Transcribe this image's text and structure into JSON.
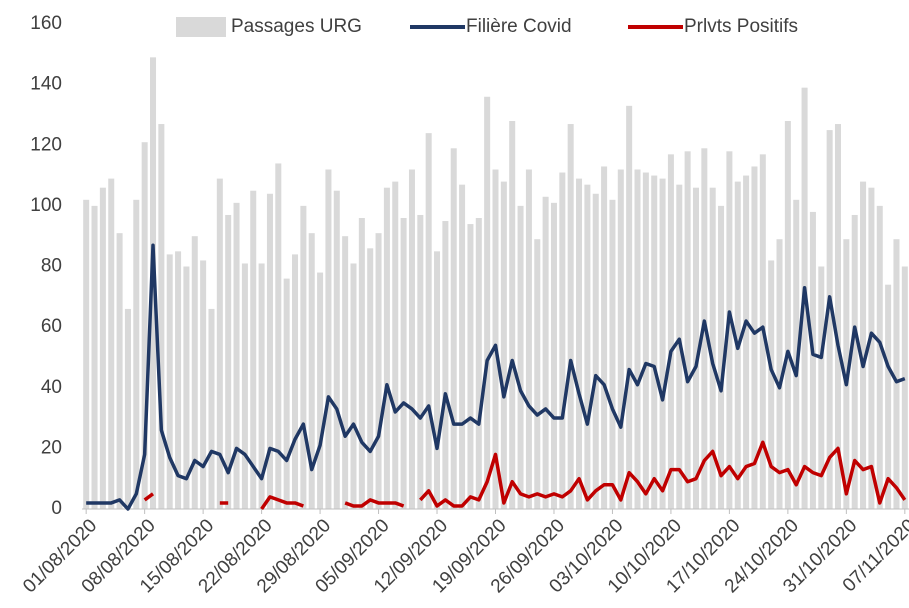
{
  "chart_data": {
    "type": "bar",
    "legend": "top",
    "grid": false,
    "ylim": [
      0,
      160
    ],
    "yticks": [
      0,
      20,
      40,
      60,
      80,
      100,
      120,
      140,
      160
    ],
    "categories": [
      "01/08/2020",
      null,
      null,
      null,
      null,
      null,
      null,
      "08/08/2020",
      null,
      null,
      null,
      null,
      null,
      null,
      "15/08/2020",
      null,
      null,
      null,
      null,
      null,
      null,
      "22/08/2020",
      null,
      null,
      null,
      null,
      null,
      null,
      "29/08/2020",
      null,
      null,
      null,
      null,
      null,
      null,
      "05/09/2020",
      null,
      null,
      null,
      null,
      null,
      null,
      "12/09/2020",
      null,
      null,
      null,
      null,
      null,
      null,
      "19/09/2020",
      null,
      null,
      null,
      null,
      null,
      null,
      "26/09/2020",
      null,
      null,
      null,
      null,
      null,
      null,
      "03/10/2020",
      null,
      null,
      null,
      null,
      null,
      null,
      "10/10/2020",
      null,
      null,
      null,
      null,
      null,
      null,
      "17/10/2020",
      null,
      null,
      null,
      null,
      null,
      null,
      "24/10/2020",
      null,
      null,
      null,
      null,
      null,
      null,
      "31/10/2020",
      null,
      null,
      null,
      null,
      null,
      null,
      "07/11/2020"
    ],
    "series": [
      {
        "name": "Passages URG",
        "type": "bar",
        "color": "#d9d9d9",
        "values": [
          102,
          100,
          106,
          109,
          91,
          66,
          102,
          121,
          149,
          127,
          84,
          85,
          80,
          90,
          82,
          66,
          109,
          97,
          101,
          81,
          105,
          81,
          104,
          114,
          76,
          84,
          100,
          91,
          78,
          112,
          105,
          90,
          81,
          96,
          86,
          91,
          106,
          108,
          96,
          112,
          97,
          124,
          85,
          95,
          119,
          107,
          94,
          96,
          136,
          112,
          108,
          128,
          100,
          112,
          89,
          103,
          101,
          111,
          127,
          109,
          107,
          104,
          113,
          102,
          112,
          133,
          112,
          111,
          110,
          109,
          117,
          107,
          118,
          106,
          119,
          106,
          100,
          118,
          108,
          110,
          113,
          117,
          82,
          89,
          128,
          102,
          139,
          98,
          80,
          125,
          127,
          89,
          97,
          108,
          106,
          100,
          74,
          89,
          80
        ]
      },
      {
        "name": "Filière Covid",
        "type": "line",
        "color": "#203864",
        "values": [
          2,
          2,
          2,
          2,
          3,
          0,
          5,
          18,
          87,
          26,
          17,
          11,
          10,
          16,
          14,
          19,
          18,
          12,
          20,
          18,
          14,
          10,
          20,
          19,
          16,
          23,
          28,
          13,
          21,
          37,
          33,
          24,
          28,
          22,
          19,
          24,
          41,
          32,
          35,
          33,
          30,
          34,
          20,
          38,
          28,
          28,
          30,
          28,
          49,
          54,
          37,
          49,
          39,
          34,
          31,
          33,
          30,
          30,
          49,
          38,
          28,
          44,
          41,
          33,
          27,
          46,
          41,
          48,
          47,
          36,
          52,
          56,
          42,
          47,
          62,
          48,
          39,
          65,
          53,
          62,
          58,
          60,
          46,
          40,
          52,
          44,
          73,
          51,
          50,
          70,
          54,
          41,
          60,
          47,
          58,
          55,
          47,
          42,
          43
        ]
      },
      {
        "name": "Prlvts Positifs",
        "type": "line",
        "color": "#c00000",
        "values": [
          null,
          null,
          null,
          null,
          null,
          null,
          null,
          3,
          5,
          null,
          null,
          null,
          null,
          null,
          null,
          null,
          2,
          2,
          null,
          null,
          null,
          0,
          4,
          3,
          2,
          2,
          1,
          null,
          null,
          null,
          null,
          2,
          1,
          1,
          3,
          2,
          2,
          2,
          1,
          null,
          3,
          6,
          1,
          3,
          1,
          1,
          4,
          3,
          9,
          18,
          2,
          9,
          5,
          4,
          5,
          4,
          5,
          4,
          6,
          10,
          3,
          6,
          8,
          8,
          3,
          12,
          9,
          5,
          10,
          6,
          13,
          13,
          9,
          10,
          16,
          19,
          11,
          14,
          10,
          14,
          15,
          22,
          14,
          12,
          13,
          8,
          14,
          12,
          11,
          17,
          20,
          5,
          16,
          13,
          14,
          2,
          10,
          7,
          3
        ]
      }
    ]
  }
}
